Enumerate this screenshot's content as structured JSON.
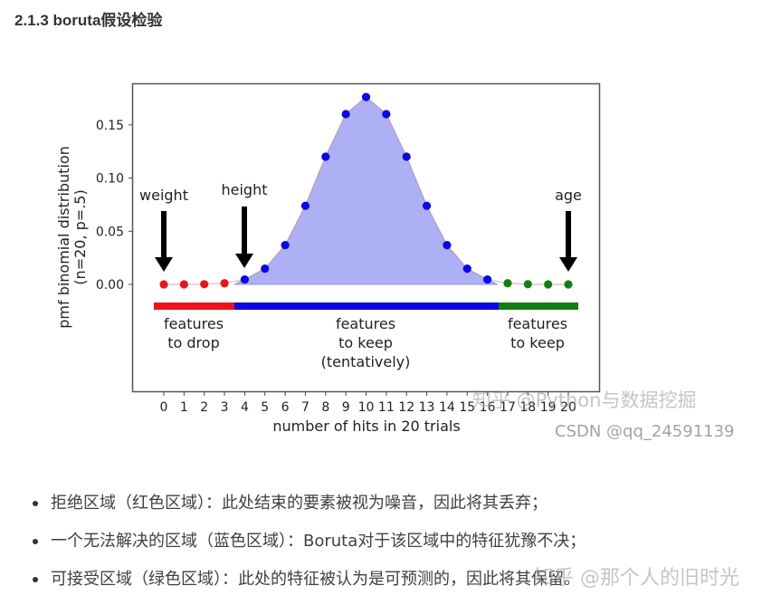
{
  "heading": "2.1.3 boruta假设检验",
  "chart_data": {
    "type": "line",
    "subtype": "area-with-markers",
    "title": "",
    "xlabel": "number of hits in 20 trials",
    "ylabel": "pmf binomial distribution\n(n=20, p=.5)",
    "ylabel_line1": "pmf binomial distribution",
    "ylabel_line2": "(n=20, p=.5)",
    "x": [
      0,
      1,
      2,
      3,
      4,
      5,
      6,
      7,
      8,
      9,
      10,
      11,
      12,
      13,
      14,
      15,
      16,
      17,
      18,
      19,
      20
    ],
    "values": [
      1e-06,
      1.9e-05,
      0.000181,
      0.001087,
      0.004621,
      0.014786,
      0.036964,
      0.073929,
      0.120134,
      0.160179,
      0.176197,
      0.160179,
      0.120134,
      0.073929,
      0.036964,
      0.014786,
      0.004621,
      0.001087,
      0.000181,
      1.9e-05,
      1e-06
    ],
    "xticks": [
      "0",
      "1",
      "2",
      "3",
      "4",
      "5",
      "6",
      "7",
      "8",
      "9",
      "10",
      "11",
      "12",
      "13",
      "14",
      "15",
      "16",
      "17",
      "18",
      "19",
      "20"
    ],
    "yticks": [
      "0.00",
      "0.05",
      "0.10",
      "0.15"
    ],
    "ylim": [
      -0.11,
      0.19
    ],
    "xlim": [
      -0.7,
      21.0
    ],
    "grid": false,
    "regions": [
      {
        "name": "features to drop",
        "label_line1": "features",
        "label_line2": "to drop",
        "label_line3": "",
        "color": "#e8141a",
        "x_from": 0,
        "x_to": 3
      },
      {
        "name": "features to keep (tentatively)",
        "label_line1": "features",
        "label_line2": "to keep",
        "label_line3": "(tentatively)",
        "color": "#0a0adf",
        "x_from": 4,
        "x_to": 16
      },
      {
        "name": "features to keep",
        "label_line1": "features",
        "label_line2": "to keep",
        "label_line3": "",
        "color": "#118011",
        "x_from": 17,
        "x_to": 20
      }
    ],
    "fill_color": "#aeb0f5",
    "annotations": [
      {
        "text": "weight",
        "x": 0
      },
      {
        "text": "height",
        "x": 4
      },
      {
        "text": "age",
        "x": 20
      }
    ]
  },
  "watermarks": {
    "zhihu_chart": "知乎 @Python与数据挖掘",
    "csdn": "CSDN @qq_24591139",
    "zhihu_text": "知乎 @那个人的旧时光"
  },
  "bullets": [
    "拒绝区域（红色区域）：此处结束的要素被视为噪音，因此将其丢弃；",
    "一个无法解决的区域（蓝色区域）：Boruta对于该区域中的特征犹豫不决；",
    "可接受区域（绿色区域）：此处的特征被认为是可预测的，因此将其保留。"
  ]
}
